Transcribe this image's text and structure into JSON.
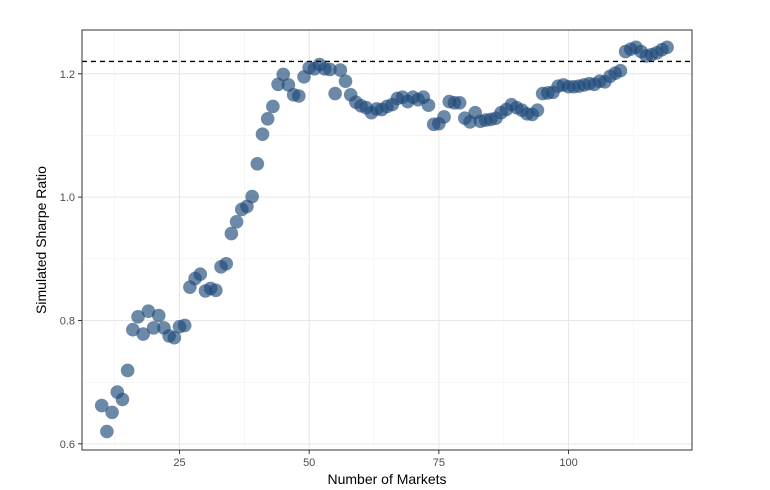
{
  "chart_data": {
    "type": "scatter",
    "title": "",
    "xlabel": "Number of Markets",
    "ylabel": "Simulated Sharpe Ratio",
    "xlim": [
      6.2,
      123.8
    ],
    "ylim": [
      0.59,
      1.271
    ],
    "x_ticks": [
      25,
      50,
      75,
      100
    ],
    "y_ticks": [
      0.6,
      0.8,
      1.0,
      1.2
    ],
    "x_tick_labels": [
      "25",
      "50",
      "75",
      "100"
    ],
    "y_tick_labels": [
      "0.6",
      "0.8",
      "1.0",
      "1.2"
    ],
    "grid": true,
    "legend": "none",
    "reference_line": {
      "y": 1.22,
      "style": "dashed"
    },
    "point_color": "#1f4a7a",
    "points": [
      [
        10,
        0.662
      ],
      [
        11,
        0.62
      ],
      [
        12,
        0.651
      ],
      [
        13,
        0.684
      ],
      [
        14,
        0.672
      ],
      [
        15,
        0.719
      ],
      [
        16,
        0.785
      ],
      [
        17,
        0.806
      ],
      [
        18,
        0.778
      ],
      [
        19,
        0.815
      ],
      [
        20,
        0.788
      ],
      [
        21,
        0.808
      ],
      [
        22,
        0.788
      ],
      [
        23,
        0.775
      ],
      [
        24,
        0.772
      ],
      [
        25,
        0.79
      ],
      [
        26,
        0.792
      ],
      [
        27,
        0.854
      ],
      [
        28,
        0.868
      ],
      [
        29,
        0.875
      ],
      [
        30,
        0.848
      ],
      [
        31,
        0.852
      ],
      [
        32,
        0.849
      ],
      [
        33,
        0.887
      ],
      [
        34,
        0.892
      ],
      [
        35,
        0.941
      ],
      [
        36,
        0.96
      ],
      [
        37,
        0.98
      ],
      [
        38,
        0.985
      ],
      [
        39,
        1.001
      ],
      [
        40,
        1.054
      ],
      [
        41,
        1.102
      ],
      [
        42,
        1.127
      ],
      [
        43,
        1.147
      ],
      [
        44,
        1.183
      ],
      [
        45,
        1.199
      ],
      [
        46,
        1.182
      ],
      [
        47,
        1.166
      ],
      [
        48,
        1.164
      ],
      [
        49,
        1.195
      ],
      [
        50,
        1.21
      ],
      [
        51,
        1.208
      ],
      [
        52,
        1.215
      ],
      [
        53,
        1.208
      ],
      [
        54,
        1.207
      ],
      [
        55,
        1.168
      ],
      [
        56,
        1.206
      ],
      [
        57,
        1.188
      ],
      [
        58,
        1.166
      ],
      [
        59,
        1.154
      ],
      [
        60,
        1.148
      ],
      [
        61,
        1.145
      ],
      [
        62,
        1.137
      ],
      [
        63,
        1.143
      ],
      [
        64,
        1.142
      ],
      [
        65,
        1.147
      ],
      [
        66,
        1.15
      ],
      [
        67,
        1.16
      ],
      [
        68,
        1.162
      ],
      [
        69,
        1.155
      ],
      [
        70,
        1.162
      ],
      [
        71,
        1.158
      ],
      [
        72,
        1.162
      ],
      [
        73,
        1.149
      ],
      [
        74,
        1.118
      ],
      [
        75,
        1.119
      ],
      [
        76,
        1.13
      ],
      [
        77,
        1.155
      ],
      [
        78,
        1.153
      ],
      [
        79,
        1.153
      ],
      [
        80,
        1.128
      ],
      [
        81,
        1.122
      ],
      [
        82,
        1.137
      ],
      [
        83,
        1.123
      ],
      [
        84,
        1.125
      ],
      [
        85,
        1.126
      ],
      [
        86,
        1.128
      ],
      [
        87,
        1.137
      ],
      [
        88,
        1.142
      ],
      [
        89,
        1.15
      ],
      [
        90,
        1.145
      ],
      [
        91,
        1.141
      ],
      [
        92,
        1.135
      ],
      [
        93,
        1.134
      ],
      [
        94,
        1.141
      ],
      [
        95,
        1.168
      ],
      [
        96,
        1.169
      ],
      [
        97,
        1.17
      ],
      [
        98,
        1.18
      ],
      [
        99,
        1.182
      ],
      [
        100,
        1.179
      ],
      [
        101,
        1.179
      ],
      [
        102,
        1.18
      ],
      [
        103,
        1.182
      ],
      [
        104,
        1.184
      ],
      [
        105,
        1.183
      ],
      [
        106,
        1.188
      ],
      [
        107,
        1.187
      ],
      [
        108,
        1.196
      ],
      [
        109,
        1.201
      ],
      [
        110,
        1.205
      ],
      [
        111,
        1.236
      ],
      [
        112,
        1.24
      ],
      [
        113,
        1.243
      ],
      [
        114,
        1.236
      ],
      [
        115,
        1.229
      ],
      [
        116,
        1.231
      ],
      [
        117,
        1.234
      ],
      [
        118,
        1.239
      ],
      [
        119,
        1.243
      ]
    ]
  }
}
